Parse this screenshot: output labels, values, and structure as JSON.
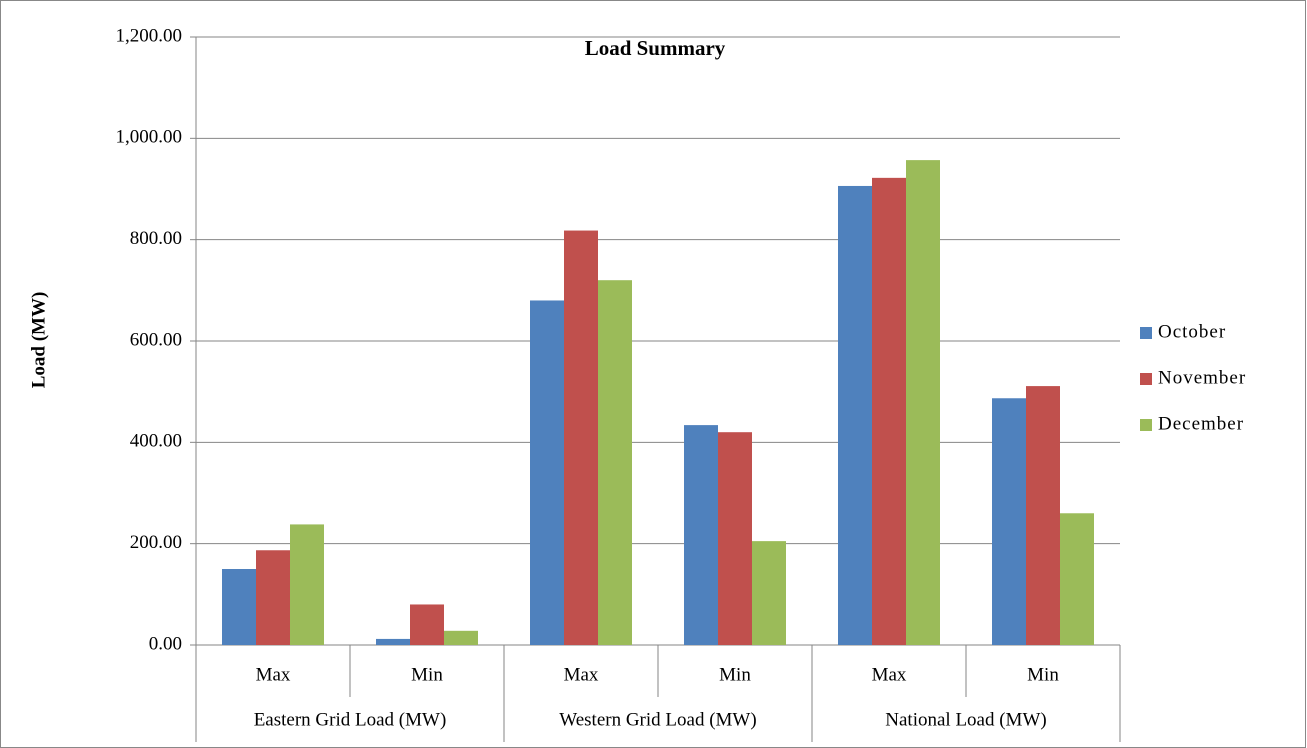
{
  "chart_data": {
    "type": "bar",
    "title": "Load Summary",
    "y_label": "Load (MW)",
    "category_groups": [
      {
        "label": "Eastern Grid Load (MW)",
        "categories": [
          "Max",
          "Min"
        ]
      },
      {
        "label": "Western Grid Load (MW)",
        "categories": [
          "Max",
          "Min"
        ]
      },
      {
        "label": "National Load (MW)",
        "categories": [
          "Max",
          "Min"
        ]
      }
    ],
    "series": [
      {
        "name": "October",
        "color": "#4f81bd",
        "values": [
          150,
          12,
          680,
          434,
          906,
          487
        ]
      },
      {
        "name": "November",
        "color": "#c0504d",
        "values": [
          187,
          80,
          818,
          420,
          922,
          511
        ]
      },
      {
        "name": "December",
        "color": "#9bbb59",
        "values": [
          238,
          28,
          720,
          205,
          957,
          260
        ]
      }
    ],
    "ylim": [
      0,
      1200
    ],
    "yticks": [
      {
        "value": 0,
        "label": "0.00"
      },
      {
        "value": 200,
        "label": "200.00"
      },
      {
        "value": 400,
        "label": "400.00"
      },
      {
        "value": 600,
        "label": "600.00"
      },
      {
        "value": 800,
        "label": "800.00"
      },
      {
        "value": 1000,
        "label": "1,000.00"
      },
      {
        "value": 1200,
        "label": "1,200.00"
      }
    ],
    "grid": true,
    "legend": "right"
  }
}
